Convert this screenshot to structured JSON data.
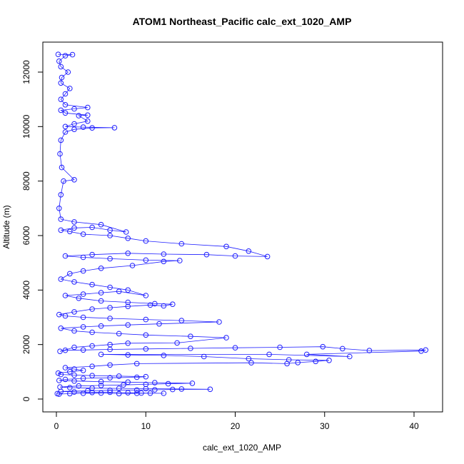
{
  "chart_data": {
    "type": "scatter",
    "title": "ATOM1 Northeast_Pacific calc_ext_1020_AMP",
    "xlabel": "calc_ext_1020_AMP",
    "ylabel": "Altitude (m)",
    "xlim": [
      0,
      42
    ],
    "ylim": [
      0,
      12700
    ],
    "xticks": [
      0,
      10,
      20,
      30,
      40
    ],
    "yticks": [
      0,
      2000,
      4000,
      6000,
      8000,
      10000,
      12000
    ],
    "series_color": "#0000ff",
    "series": [
      {
        "style": "points connected by lines",
        "points": [
          [
            0.1,
            200
          ],
          [
            0.3,
            180
          ],
          [
            1.5,
            200
          ],
          [
            3,
            210
          ],
          [
            5,
            220
          ],
          [
            7,
            200
          ],
          [
            9,
            210
          ],
          [
            10.5,
            215
          ],
          [
            12,
            210
          ],
          [
            9.5,
            220
          ],
          [
            8,
            230
          ],
          [
            6,
            250
          ],
          [
            4,
            240
          ],
          [
            2,
            260
          ],
          [
            0.5,
            280
          ],
          [
            3.5,
            300
          ],
          [
            6,
            320
          ],
          [
            9,
            330
          ],
          [
            11,
            340
          ],
          [
            13,
            350
          ],
          [
            17.2,
            360
          ],
          [
            14,
            370
          ],
          [
            10,
            380
          ],
          [
            7,
            390
          ],
          [
            4,
            400
          ],
          [
            1.5,
            420
          ],
          [
            0.4,
            440
          ],
          [
            2.5,
            480
          ],
          [
            5,
            500
          ],
          [
            7.5,
            520
          ],
          [
            10,
            540
          ],
          [
            12.5,
            560
          ],
          [
            15.2,
            580
          ],
          [
            11,
            600
          ],
          [
            8,
            620
          ],
          [
            5,
            640
          ],
          [
            2,
            660
          ],
          [
            0.3,
            680
          ],
          [
            1,
            720
          ],
          [
            3,
            760
          ],
          [
            6,
            780
          ],
          [
            9,
            800
          ],
          [
            10,
            820
          ],
          [
            7,
            840
          ],
          [
            4,
            860
          ],
          [
            2,
            880
          ],
          [
            0.5,
            900
          ],
          [
            0.2,
            950
          ],
          [
            1.5,
            1000
          ],
          [
            3,
            1050
          ],
          [
            2,
            1100
          ],
          [
            1,
            1150
          ],
          [
            4,
            1200
          ],
          [
            6,
            1250
          ],
          [
            9,
            1300
          ],
          [
            21.8,
            1330
          ],
          [
            25.8,
            1300
          ],
          [
            27,
            1340
          ],
          [
            29,
            1380
          ],
          [
            30.5,
            1420
          ],
          [
            26,
            1440
          ],
          [
            21.5,
            1480
          ],
          [
            16.5,
            1560
          ],
          [
            12,
            1600
          ],
          [
            8,
            1620
          ],
          [
            5,
            1640
          ],
          [
            23.8,
            1640
          ],
          [
            32.8,
            1560
          ],
          [
            28,
            1640
          ],
          [
            40.8,
            1760
          ],
          [
            41.3,
            1800
          ],
          [
            35,
            1780
          ],
          [
            32,
            1850
          ],
          [
            29.8,
            1920
          ],
          [
            25,
            1900
          ],
          [
            20,
            1880
          ],
          [
            15,
            1860
          ],
          [
            10,
            1840
          ],
          [
            6,
            1820
          ],
          [
            3,
            1800
          ],
          [
            1,
            1790
          ],
          [
            0.4,
            1750
          ],
          [
            2,
            1900
          ],
          [
            4,
            1950
          ],
          [
            6,
            2000
          ],
          [
            8,
            2050
          ],
          [
            13.5,
            2060
          ],
          [
            19,
            2250
          ],
          [
            15,
            2300
          ],
          [
            10,
            2350
          ],
          [
            7,
            2400
          ],
          [
            4,
            2450
          ],
          [
            2,
            2500
          ],
          [
            0.5,
            2600
          ],
          [
            3,
            2650
          ],
          [
            5,
            2680
          ],
          [
            8,
            2720
          ],
          [
            11.5,
            2760
          ],
          [
            18.2,
            2830
          ],
          [
            14,
            2880
          ],
          [
            10,
            2920
          ],
          [
            6,
            2960
          ],
          [
            3,
            3000
          ],
          [
            1,
            3050
          ],
          [
            0.3,
            3100
          ],
          [
            2,
            3200
          ],
          [
            4,
            3300
          ],
          [
            6,
            3350
          ],
          [
            8,
            3400
          ],
          [
            10.5,
            3450
          ],
          [
            12,
            3420
          ],
          [
            13,
            3480
          ],
          [
            11,
            3500
          ],
          [
            8,
            3550
          ],
          [
            5,
            3600
          ],
          [
            2.5,
            3700
          ],
          [
            1,
            3800
          ],
          [
            3,
            3850
          ],
          [
            5,
            3900
          ],
          [
            7,
            3950
          ],
          [
            10,
            3800
          ],
          [
            8,
            4000
          ],
          [
            6,
            4100
          ],
          [
            4,
            4200
          ],
          [
            2,
            4300
          ],
          [
            0.5,
            4400
          ],
          [
            1.5,
            4600
          ],
          [
            3,
            4700
          ],
          [
            5,
            4800
          ],
          [
            8.5,
            4900
          ],
          [
            12,
            5050
          ],
          [
            13.8,
            5080
          ],
          [
            10,
            5100
          ],
          [
            6,
            5150
          ],
          [
            3,
            5200
          ],
          [
            1,
            5250
          ],
          [
            4,
            5300
          ],
          [
            8,
            5350
          ],
          [
            12,
            5320
          ],
          [
            16.8,
            5300
          ],
          [
            20,
            5250
          ],
          [
            23.6,
            5230
          ],
          [
            21.5,
            5430
          ],
          [
            19,
            5600
          ],
          [
            14,
            5700
          ],
          [
            10,
            5800
          ],
          [
            8,
            5900
          ],
          [
            6,
            6000
          ],
          [
            3,
            6050
          ],
          [
            1.5,
            6150
          ],
          [
            0.5,
            6200
          ],
          [
            2,
            6280
          ],
          [
            4,
            6300
          ],
          [
            6,
            6200
          ],
          [
            7.8,
            6130
          ],
          [
            5,
            6400
          ],
          [
            2,
            6500
          ],
          [
            0.5,
            6600
          ],
          [
            0.3,
            7000
          ],
          [
            0.5,
            7500
          ],
          [
            0.8,
            8000
          ],
          [
            2,
            8050
          ],
          [
            0.6,
            8500
          ],
          [
            0.4,
            9000
          ],
          [
            0.5,
            9500
          ],
          [
            1,
            9800
          ],
          [
            2,
            9900
          ],
          [
            4,
            9950
          ],
          [
            6.5,
            9960
          ],
          [
            3,
            9980
          ],
          [
            1,
            10000
          ],
          [
            2,
            10100
          ],
          [
            3.5,
            10200
          ],
          [
            2.5,
            10400
          ],
          [
            3.5,
            10420
          ],
          [
            1,
            10500
          ],
          [
            0.5,
            10600
          ],
          [
            2,
            10650
          ],
          [
            3.5,
            10700
          ],
          [
            1,
            10800
          ],
          [
            0.5,
            11000
          ],
          [
            1,
            11200
          ],
          [
            1.5,
            11400
          ],
          [
            0.5,
            11600
          ],
          [
            0.6,
            11800
          ],
          [
            1.3,
            12000
          ],
          [
            0.5,
            12200
          ],
          [
            0.3,
            12400
          ],
          [
            1,
            12600
          ],
          [
            1.8,
            12640
          ],
          [
            0.2,
            12650
          ]
        ]
      }
    ]
  }
}
